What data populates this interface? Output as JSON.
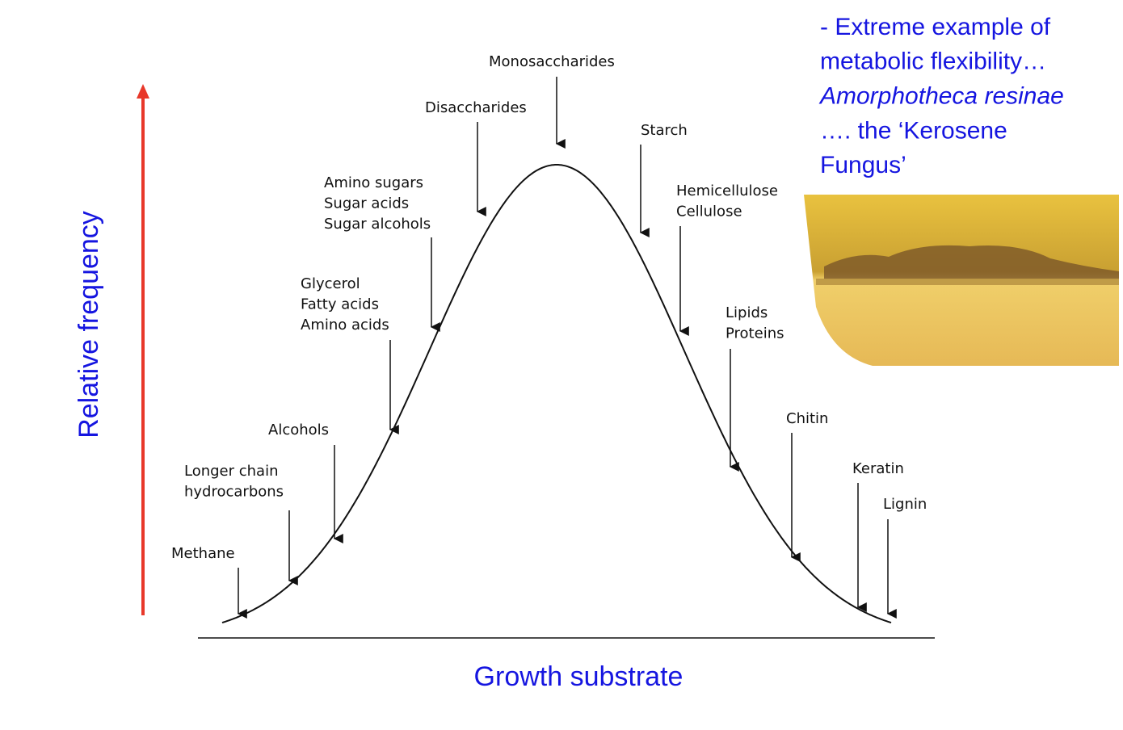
{
  "axes": {
    "y_label": "Relative frequency",
    "x_label": "Growth substrate"
  },
  "substrates": [
    {
      "lines": [
        "Methane"
      ]
    },
    {
      "lines": [
        "Longer chain",
        "hydrocarbons"
      ]
    },
    {
      "lines": [
        "Alcohols"
      ]
    },
    {
      "lines": [
        "Glycerol",
        "Fatty acids",
        "Amino acids"
      ]
    },
    {
      "lines": [
        "Amino sugars",
        "Sugar acids",
        "Sugar alcohols"
      ]
    },
    {
      "lines": [
        "Disaccharides"
      ]
    },
    {
      "lines": [
        "Monosaccharides"
      ]
    },
    {
      "lines": [
        "Starch"
      ]
    },
    {
      "lines": [
        "Hemicellulose",
        "Cellulose"
      ]
    },
    {
      "lines": [
        "Lipids",
        "Proteins"
      ]
    },
    {
      "lines": [
        "Chitin"
      ]
    },
    {
      "lines": [
        "Keratin"
      ]
    },
    {
      "lines": [
        "Lignin"
      ]
    }
  ],
  "note": {
    "lines": [
      "- Extreme example of",
      "metabolic flexibility…",
      "Amorphotheca resinae",
      "…. the ‘Kerosene",
      "Fungus’"
    ]
  }
}
